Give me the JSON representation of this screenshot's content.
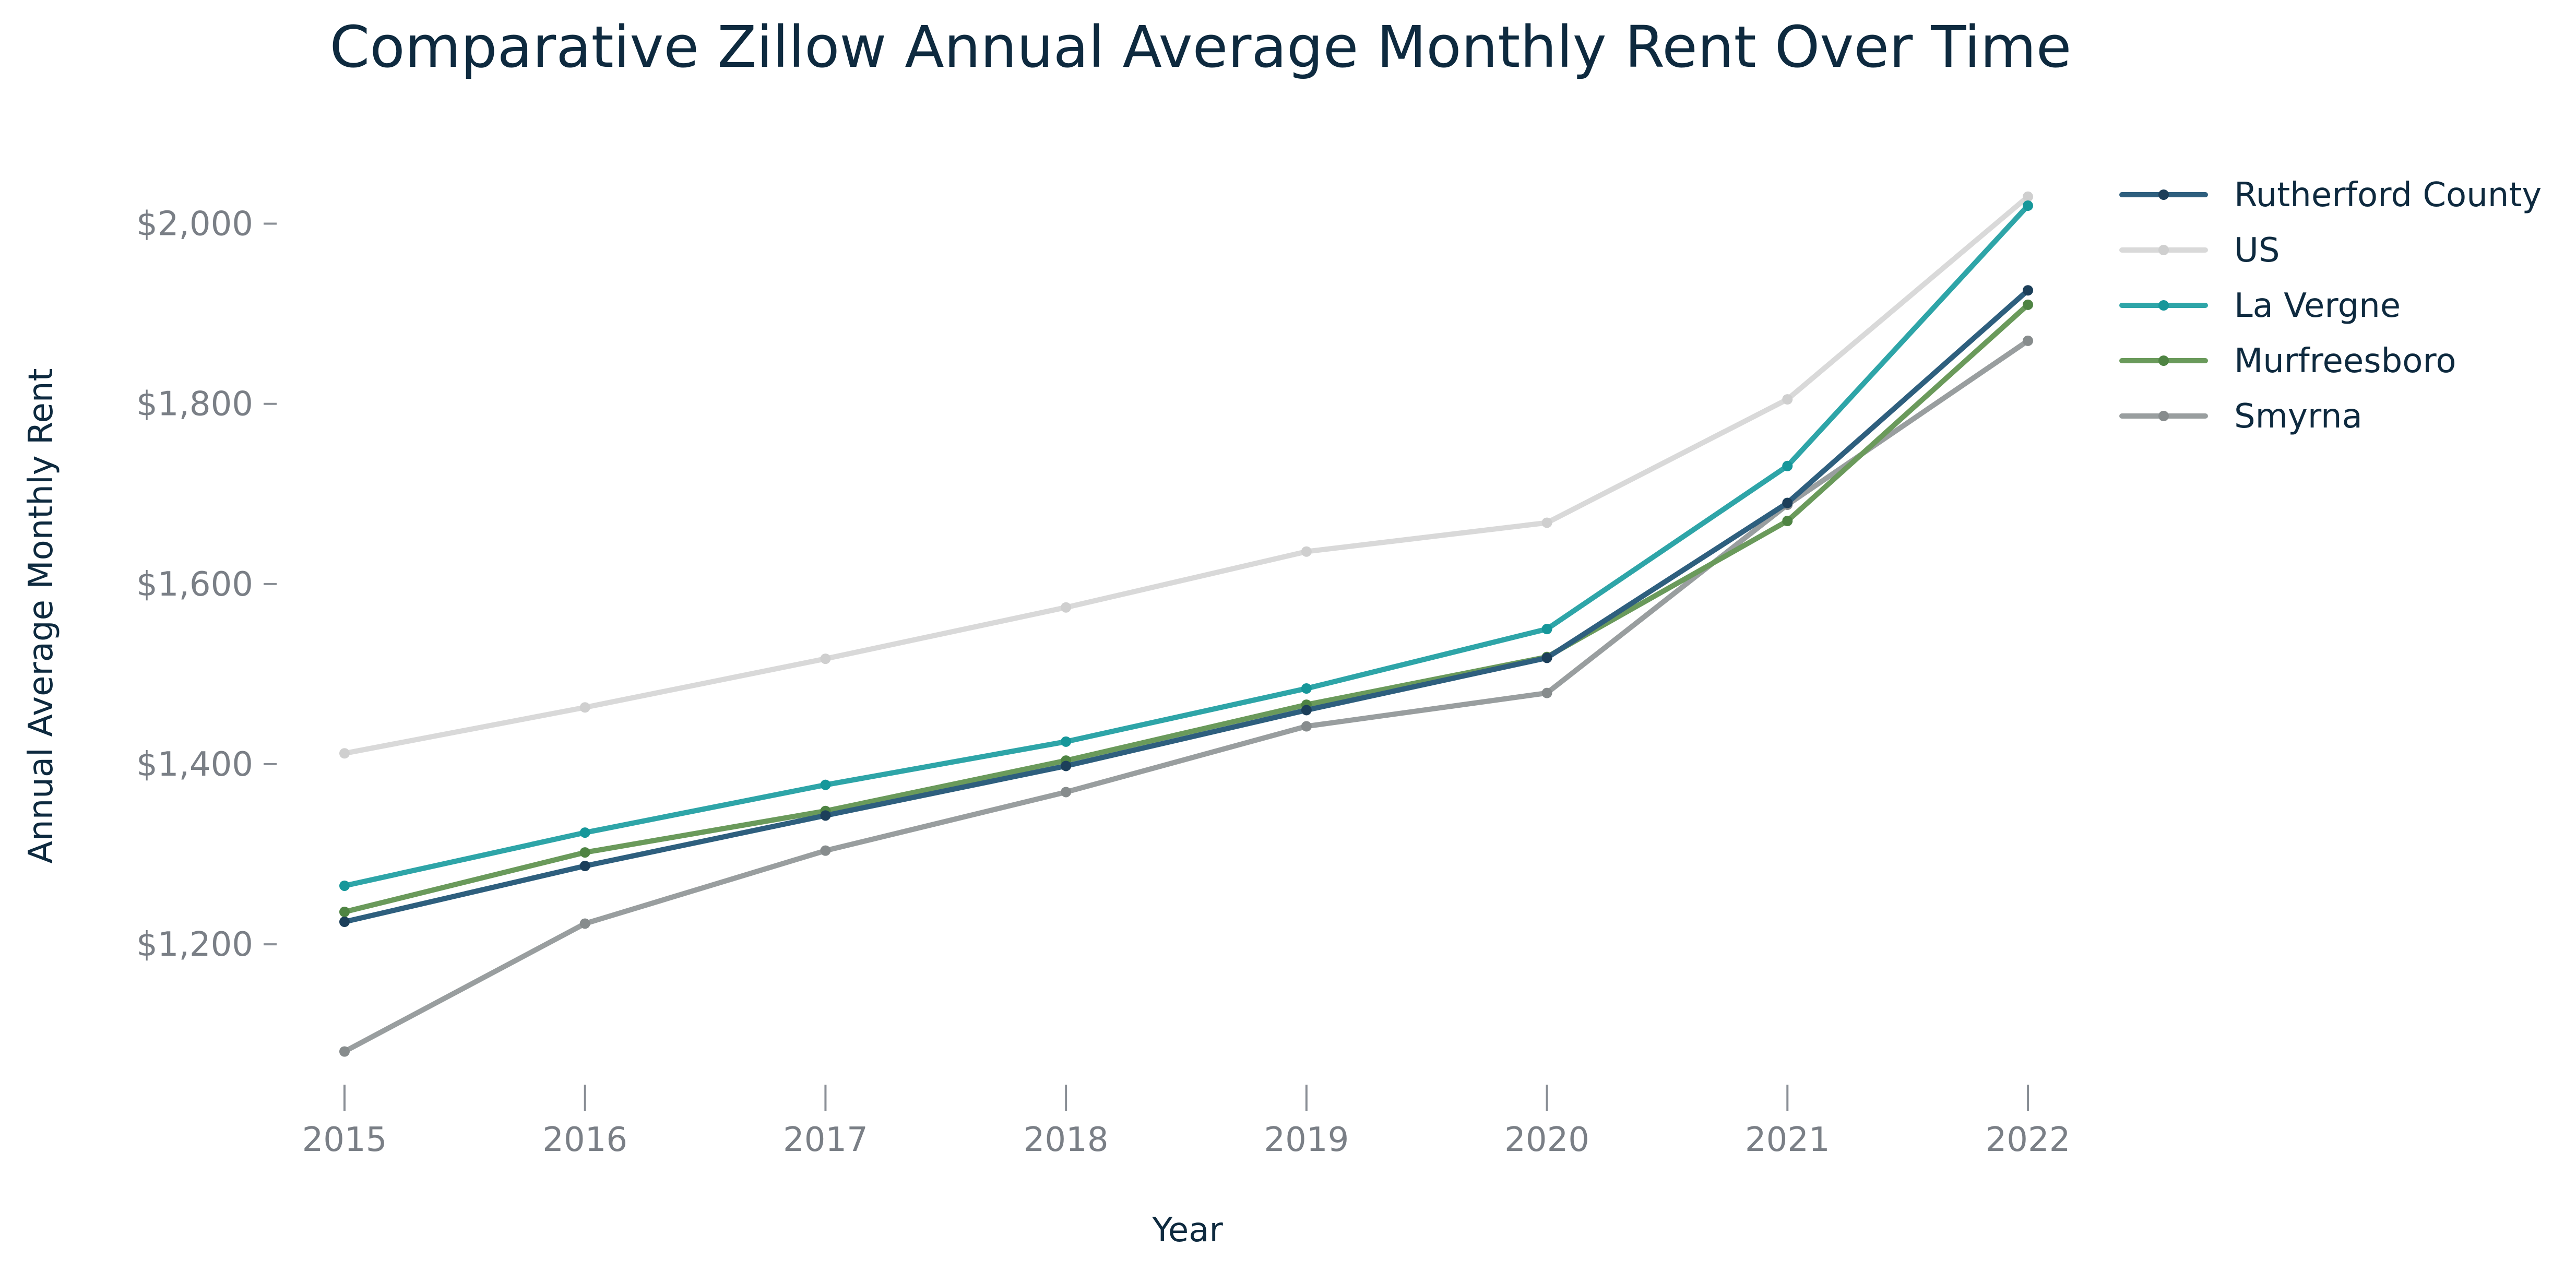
{
  "chart_data": {
    "type": "line",
    "title": "Comparative Zillow Annual Average Monthly Rent Over Time",
    "xlabel": "Year",
    "ylabel": "Annual Average Monthly Rent",
    "x": [
      2015,
      2016,
      2017,
      2018,
      2019,
      2020,
      2021,
      2022
    ],
    "x_tick_labels": [
      "2015",
      "2016",
      "2017",
      "2018",
      "2019",
      "2020",
      "2021",
      "2022"
    ],
    "y_ticks": [
      1200,
      1400,
      1600,
      1800,
      2000
    ],
    "y_tick_labels": [
      "$1,200",
      "$1,400",
      "$1,600",
      "$1,800",
      "$2,000"
    ],
    "ylim": [
      1050,
      2060
    ],
    "grid": false,
    "legend_position": "top-right",
    "series": [
      {
        "name": "Rutherford County",
        "color": "#2e5f7e",
        "marker_color": "#1c3f5a",
        "values": [
          1225,
          1287,
          1343,
          1398,
          1460,
          1518,
          1690,
          1926
        ]
      },
      {
        "name": "US",
        "color": "#d9d9d9",
        "marker_color": "#cfcfcf",
        "values": [
          1412,
          1463,
          1517,
          1574,
          1636,
          1668,
          1805,
          2030
        ]
      },
      {
        "name": "La Vergne",
        "color": "#2ea5a8",
        "marker_color": "#16979a",
        "values": [
          1265,
          1324,
          1377,
          1425,
          1484,
          1550,
          1731,
          2020
        ]
      },
      {
        "name": "Murfreesboro",
        "color": "#6a9a5b",
        "marker_color": "#4f8443",
        "values": [
          1236,
          1302,
          1348,
          1404,
          1466,
          1519,
          1670,
          1910
        ]
      },
      {
        "name": "Smyrna",
        "color": "#999e9f",
        "marker_color": "#878c8d",
        "values": [
          1081,
          1223,
          1304,
          1369,
          1442,
          1479,
          1688,
          1870
        ]
      }
    ]
  }
}
